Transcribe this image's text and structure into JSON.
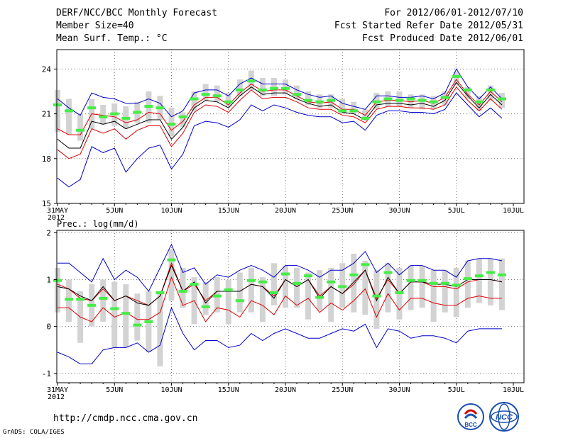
{
  "header": {
    "title": "DERF/NCC/BCC Monthly Forecast",
    "member_size": "Member Size=40",
    "variable": "Mean Surf. Temp.: °C",
    "period": "For 2012/06/01-2012/07/10",
    "started": "Fcst Started Refer Date 2012/05/31",
    "produced": "Fcst Produced Date 2012/06/01"
  },
  "footer": {
    "url": "http://cmdp.ncc.cma.gov.cn",
    "credit": "GrADS: COLA/IGES",
    "logo_bcc": "BCC",
    "logo_ncc": "NCC"
  },
  "colors": {
    "green": "#44ee44",
    "box": "#d3d3d3",
    "red": "#dd0000",
    "blue": "#0000cc",
    "black": "#000000"
  },
  "chart_data": [
    {
      "type": "line",
      "title": "",
      "ylabel": "Mean Surf. Temp.: °C",
      "ylim": [
        15,
        25.3
      ],
      "yticks": [
        15,
        18,
        21,
        24
      ],
      "xtick_labels": [
        "31MAY\n2012",
        "5JUN",
        "10JUN",
        "15JUN",
        "20JUN",
        "25JUN",
        "30JUN",
        "5JUL",
        "10JUL"
      ],
      "x_days": 41,
      "box_low": [
        19.8,
        19.6,
        19.2,
        20.0,
        20.3,
        20.2,
        20.0,
        20.4,
        20.4,
        20.6,
        19.5,
        20.1,
        21.2,
        21.9,
        21.8,
        21.5,
        22.2,
        22.6,
        22.2,
        22.2,
        22.3,
        22.0,
        21.6,
        21.4,
        21.4,
        21.0,
        21.0,
        20.6,
        21.3,
        21.5,
        21.5,
        21.4,
        21.3,
        21.3,
        21.6,
        22.9,
        22.0,
        21.2,
        21.9,
        21.4,
        null
      ],
      "box_high": [
        22.6,
        22.0,
        21.0,
        22.0,
        21.6,
        21.7,
        21.5,
        21.8,
        22.5,
        22.2,
        21.4,
        21.1,
        22.5,
        23.0,
        22.9,
        22.4,
        23.3,
        23.9,
        23.4,
        23.4,
        23.3,
        22.9,
        22.5,
        22.3,
        22.3,
        22.0,
        21.8,
        21.3,
        22.4,
        22.5,
        22.5,
        22.3,
        22.3,
        22.2,
        22.5,
        23.8,
        22.8,
        22.2,
        22.9,
        22.4,
        null
      ],
      "green": [
        21.6,
        21.2,
        19.9,
        21.4,
        20.8,
        21.0,
        20.7,
        21.1,
        21.5,
        21.4,
        20.3,
        20.8,
        22.0,
        22.3,
        22.2,
        21.8,
        22.6,
        23.2,
        22.6,
        22.7,
        22.7,
        22.3,
        21.9,
        21.8,
        21.9,
        21.2,
        21.2,
        20.7,
        21.8,
        22.0,
        21.9,
        22.0,
        21.9,
        21.8,
        22.1,
        23.5,
        22.6,
        21.8,
        22.6,
        22.0,
        null
      ],
      "series": [
        {
          "name": "max",
          "color": "blue",
          "values": [
            22.0,
            21.4,
            20.9,
            22.4,
            22.1,
            22.0,
            21.7,
            21.7,
            22.0,
            21.7,
            20.8,
            21.2,
            22.4,
            22.6,
            22.6,
            22.2,
            23.0,
            23.4,
            23.0,
            23.0,
            23.0,
            22.6,
            22.3,
            22.1,
            22.2,
            21.7,
            21.5,
            21.3,
            22.2,
            22.2,
            22.1,
            22.1,
            22.2,
            22.0,
            22.4,
            24.0,
            22.8,
            22.0,
            22.8,
            22.0,
            null
          ]
        },
        {
          "name": "upper",
          "color": "red",
          "values": [
            20.0,
            19.6,
            19.6,
            21.0,
            20.9,
            20.8,
            20.4,
            20.6,
            21.1,
            21.0,
            19.9,
            20.5,
            21.6,
            22.1,
            22.1,
            21.6,
            22.4,
            23.0,
            22.5,
            22.6,
            22.6,
            22.2,
            21.8,
            21.7,
            21.8,
            21.3,
            21.3,
            20.9,
            21.8,
            21.9,
            21.9,
            21.8,
            21.9,
            21.7,
            22.1,
            23.3,
            22.3,
            21.6,
            22.5,
            21.8,
            null
          ]
        },
        {
          "name": "median",
          "color": "black",
          "values": [
            19.3,
            18.7,
            18.7,
            20.5,
            20.3,
            20.5,
            20.0,
            20.3,
            20.6,
            20.6,
            19.3,
            20.1,
            21.4,
            21.9,
            21.8,
            21.4,
            22.2,
            22.8,
            22.3,
            22.4,
            22.4,
            22.0,
            21.7,
            21.5,
            21.6,
            21.1,
            21.0,
            20.6,
            21.6,
            21.7,
            21.7,
            21.6,
            21.7,
            21.5,
            21.9,
            23.1,
            22.2,
            21.4,
            22.3,
            21.6,
            null
          ]
        },
        {
          "name": "lower",
          "color": "red",
          "values": [
            18.6,
            18.0,
            18.3,
            20.0,
            19.7,
            20.0,
            19.3,
            19.9,
            20.2,
            20.2,
            18.8,
            19.7,
            21.1,
            21.6,
            21.5,
            21.1,
            21.9,
            22.6,
            22.0,
            22.1,
            22.1,
            21.8,
            21.4,
            21.3,
            21.3,
            20.9,
            20.8,
            20.4,
            21.3,
            21.5,
            21.5,
            21.4,
            21.4,
            21.3,
            21.6,
            22.8,
            21.9,
            21.2,
            22.0,
            21.3,
            null
          ]
        },
        {
          "name": "min",
          "color": "blue",
          "values": [
            16.7,
            16.1,
            16.6,
            18.8,
            18.4,
            18.7,
            17.1,
            18.0,
            18.7,
            18.9,
            17.3,
            18.3,
            20.2,
            20.5,
            20.4,
            20.1,
            20.6,
            21.6,
            21.2,
            21.6,
            21.4,
            21.1,
            20.9,
            20.8,
            20.8,
            20.4,
            20.5,
            19.9,
            20.9,
            21.2,
            21.2,
            21.1,
            21.1,
            21.0,
            21.3,
            22.4,
            21.6,
            20.8,
            21.4,
            20.7,
            null
          ]
        }
      ]
    },
    {
      "type": "line",
      "title": "",
      "ylabel": "Prec.: log(mm/d)",
      "ylim": [
        -1.2,
        2.05
      ],
      "yticks": [
        -1,
        0,
        1,
        2
      ],
      "xtick_labels": [
        "31MAY\n2012",
        "5JUN",
        "10JUN",
        "15JUN",
        "20JUN",
        "25JUN",
        "30JUN",
        "5JUL",
        "10JUL"
      ],
      "x_days": 41,
      "box_low": [
        0.3,
        0.1,
        -0.35,
        0.0,
        0.1,
        -0.45,
        -0.45,
        -0.3,
        -0.55,
        -0.85,
        0.55,
        0.4,
        0.05,
        0.25,
        0.3,
        0.05,
        0.3,
        0.3,
        0.1,
        0.45,
        0.4,
        0.4,
        0.15,
        0.35,
        0.1,
        0.4,
        0.3,
        0.25,
        -0.05,
        0.3,
        0.15,
        0.35,
        0.4,
        0.1,
        0.3,
        0.2,
        0.4,
        0.5,
        0.45,
        0.35,
        null
      ],
      "box_high": [
        1.25,
        1.0,
        0.75,
        0.9,
        1.0,
        0.95,
        0.9,
        0.7,
        0.75,
        0.7,
        1.65,
        1.25,
        1.05,
        0.95,
        1.05,
        1.0,
        1.15,
        1.25,
        1.05,
        1.35,
        1.3,
        1.25,
        1.15,
        1.2,
        1.25,
        1.35,
        1.55,
        1.4,
        1.2,
        1.35,
        1.25,
        1.3,
        1.3,
        1.2,
        1.2,
        1.25,
        1.4,
        1.45,
        1.45,
        1.45,
        null
      ],
      "green": [
        0.98,
        0.58,
        0.58,
        0.45,
        0.6,
        0.38,
        0.28,
        0.03,
        0.1,
        0.72,
        1.42,
        0.75,
        0.9,
        0.42,
        0.65,
        0.78,
        0.55,
        0.98,
        0.95,
        0.72,
        1.12,
        0.92,
        1.08,
        0.62,
        0.95,
        0.85,
        1.1,
        1.32,
        0.65,
        1.15,
        0.72,
        0.98,
        0.98,
        0.92,
        0.92,
        0.88,
        1.02,
        1.08,
        1.15,
        1.1,
        null
      ],
      "series": [
        {
          "name": "max",
          "color": "blue",
          "values": [
            1.35,
            1.35,
            1.15,
            0.95,
            1.45,
            1.0,
            1.2,
            1.05,
            0.75,
            1.25,
            1.75,
            1.15,
            1.25,
            0.9,
            1.1,
            1.05,
            1.2,
            1.3,
            1.2,
            1.05,
            1.3,
            1.3,
            1.2,
            1.05,
            1.2,
            1.2,
            1.35,
            1.6,
            1.15,
            1.35,
            1.1,
            1.3,
            1.3,
            1.2,
            1.2,
            1.05,
            1.4,
            1.45,
            1.45,
            1.4,
            null
          ]
        },
        {
          "name": "upper",
          "color": "red",
          "values": [
            0.9,
            0.8,
            0.6,
            0.55,
            0.8,
            0.55,
            0.65,
            0.55,
            0.45,
            0.65,
            1.35,
            0.75,
            0.9,
            0.55,
            0.75,
            0.75,
            0.75,
            0.9,
            0.85,
            0.65,
            1.0,
            0.85,
            1.0,
            0.65,
            0.85,
            0.7,
            0.9,
            1.2,
            0.6,
            1.0,
            0.7,
            0.95,
            0.95,
            0.85,
            0.85,
            0.8,
            0.95,
            1.0,
            1.0,
            0.95,
            null
          ]
        },
        {
          "name": "median",
          "color": "black",
          "values": [
            0.85,
            0.8,
            0.65,
            0.55,
            0.85,
            0.55,
            0.65,
            0.5,
            0.45,
            0.65,
            1.3,
            0.75,
            0.95,
            0.5,
            0.75,
            0.75,
            0.75,
            0.9,
            0.85,
            0.6,
            1.0,
            0.85,
            1.0,
            0.6,
            0.85,
            0.7,
            0.95,
            1.2,
            0.55,
            1.05,
            0.7,
            0.95,
            0.95,
            0.9,
            0.9,
            0.85,
            1.0,
            1.0,
            1.0,
            0.95,
            null
          ]
        },
        {
          "name": "lower",
          "color": "red",
          "values": [
            0.4,
            0.4,
            0.2,
            0.1,
            0.4,
            0.2,
            0.3,
            0.15,
            0.15,
            0.3,
            1.05,
            0.45,
            0.55,
            0.1,
            0.4,
            0.35,
            0.2,
            0.55,
            0.45,
            0.25,
            0.65,
            0.45,
            0.6,
            0.3,
            0.5,
            0.35,
            0.55,
            0.8,
            0.2,
            0.7,
            0.35,
            0.6,
            0.6,
            0.5,
            0.45,
            0.45,
            0.6,
            0.65,
            0.6,
            0.6,
            null
          ]
        },
        {
          "name": "min",
          "color": "blue",
          "values": [
            -0.55,
            -0.65,
            -0.8,
            -0.8,
            -0.5,
            -0.45,
            -0.45,
            -0.35,
            -0.55,
            -0.4,
            0.4,
            -0.15,
            -0.5,
            -0.3,
            -0.3,
            -0.45,
            -0.4,
            -0.15,
            -0.3,
            -0.15,
            -0.05,
            -0.15,
            -0.25,
            -0.25,
            -0.15,
            -0.05,
            -0.1,
            0.05,
            -0.45,
            -0.05,
            -0.1,
            -0.25,
            -0.2,
            -0.2,
            -0.25,
            -0.35,
            -0.1,
            -0.05,
            -0.05,
            -0.05,
            null
          ]
        }
      ]
    }
  ]
}
